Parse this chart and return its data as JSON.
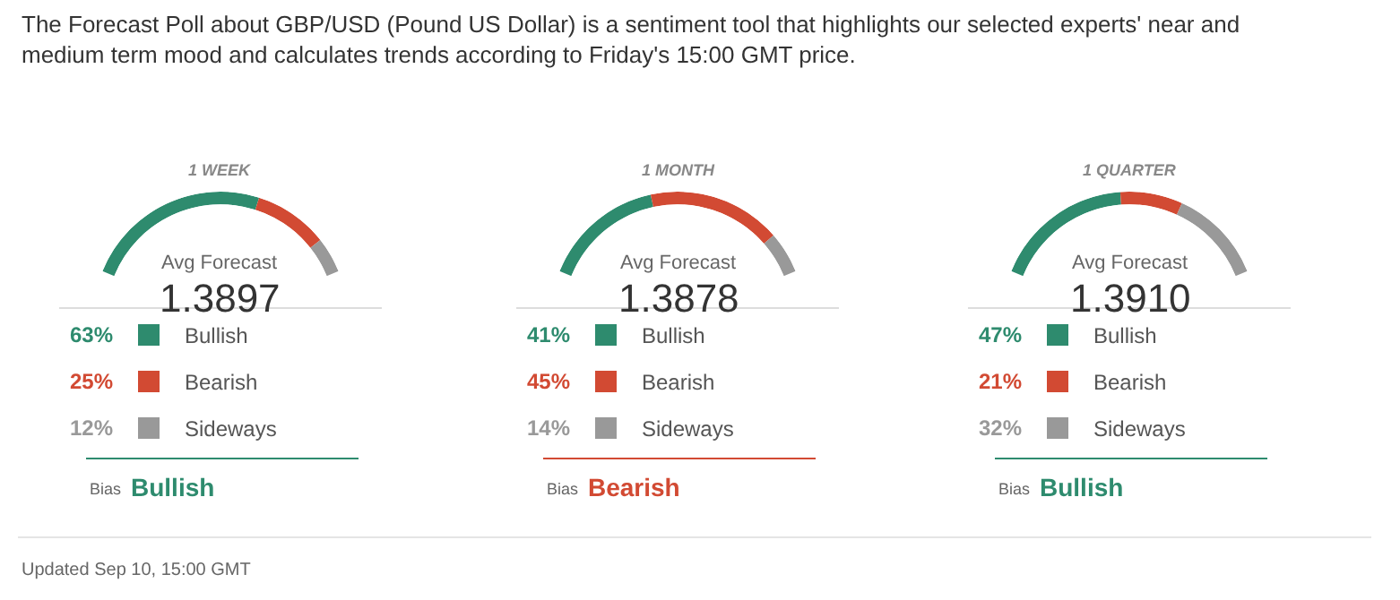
{
  "chart_data": [
    {
      "type": "donut",
      "title": "1 WEEK",
      "categories": [
        "Bullish",
        "Bearish",
        "Sideways"
      ],
      "values": [
        63,
        25,
        12
      ],
      "colors": [
        "#2e8b6e",
        "#d24a33",
        "#999999"
      ],
      "value_labels": [
        "63%",
        "25%",
        "12%"
      ],
      "legend": "bottom",
      "annotations": [
        "Avg Forecast",
        "1.3897",
        "Bias",
        "Bullish"
      ]
    },
    {
      "type": "donut",
      "title": "1 MONTH",
      "categories": [
        "Bullish",
        "Bearish",
        "Sideways"
      ],
      "values": [
        41,
        45,
        14
      ],
      "colors": [
        "#2e8b6e",
        "#d24a33",
        "#999999"
      ],
      "value_labels": [
        "41%",
        "45%",
        "14%"
      ],
      "legend": "bottom",
      "annotations": [
        "Avg Forecast",
        "1.3878",
        "Bias",
        "Bearish"
      ]
    },
    {
      "type": "donut",
      "title": "1 QUARTER",
      "categories": [
        "Bullish",
        "Bearish",
        "Sideways"
      ],
      "values": [
        47,
        21,
        32
      ],
      "colors": [
        "#2e8b6e",
        "#d24a33",
        "#999999"
      ],
      "value_labels": [
        "47%",
        "21%",
        "32%"
      ],
      "legend": "bottom",
      "annotations": [
        "Avg Forecast",
        "1.3910",
        "Bias",
        "Bullish"
      ]
    },
    {
      "type": "other",
      "annotations": [
        "The Forecast Poll about GBP/USD (Pound US Dollar) is a sentiment tool that highlights our selected experts' near and medium term mood and calculates trends according to Friday's 15:00 GMT price.",
        "Updated Sep 10, 15:00 GMT"
      ]
    }
  ]
}
